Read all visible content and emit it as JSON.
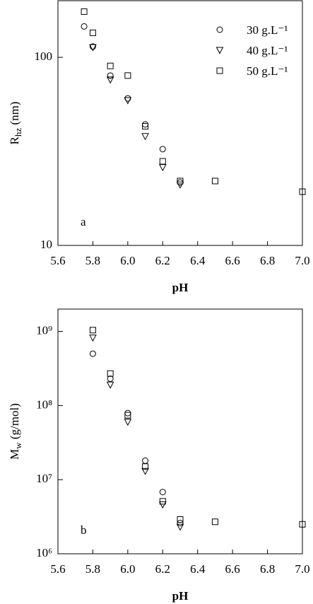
{
  "chart_data": [
    {
      "type": "scatter",
      "annotation": "a",
      "xlabel": "pH",
      "ylabel": {
        "main": "R",
        "sub": "hz",
        "rest": " (nm)"
      },
      "log_y": true,
      "legend": "upper right",
      "xlim": [
        5.6,
        7.0
      ],
      "xticks": [
        5.6,
        5.8,
        {
          "value": 6.0,
          "label": "6.0"
        },
        6.2,
        6.4,
        6.6,
        6.8,
        {
          "value": 7.0,
          "label": "7.0"
        }
      ],
      "ylim": [
        10,
        200
      ],
      "yticks": [
        10,
        100
      ],
      "series": [
        {
          "name": "30 g.L⁻¹",
          "marker": "circle",
          "color": "#000000",
          "x": [
            5.75,
            5.8,
            5.9,
            6.0,
            6.1,
            6.2,
            6.3
          ],
          "values": [
            146,
            114,
            80,
            60.5,
            44,
            32.5,
            21.6
          ]
        },
        {
          "name": "40 g.L⁻¹",
          "marker": "triangle",
          "color": "#000000",
          "x": [
            5.8,
            5.9,
            6.0,
            6.1,
            6.2,
            6.3
          ],
          "values": [
            113,
            76,
            59,
            38,
            26,
            21
          ]
        },
        {
          "name": "50 g.L⁻¹",
          "marker": "square",
          "color": "#000000",
          "x": [
            5.75,
            5.8,
            5.9,
            6.0,
            6.1,
            6.2,
            6.3,
            6.5,
            7.0
          ],
          "values": [
            175,
            135,
            90,
            80,
            43,
            28,
            22,
            22,
            19.3
          ]
        }
      ]
    },
    {
      "type": "scatter",
      "annotation": "b",
      "xlabel": "pH",
      "ylabel": {
        "main": "M",
        "sub": "w",
        "rest": " (g/mol)"
      },
      "log_y": true,
      "xlim": [
        5.6,
        7.0
      ],
      "xticks": [
        5.6,
        5.8,
        {
          "value": 6.0,
          "label": "6.0"
        },
        6.2,
        6.4,
        6.6,
        6.8,
        {
          "value": 7.0,
          "label": "7.0"
        }
      ],
      "ylim": [
        1000000,
        2000000000
      ],
      "yticks": [
        {
          "value": 1000000,
          "label": "10⁶"
        },
        {
          "value": 10000000,
          "label": "10⁷"
        },
        {
          "value": 100000000,
          "label": "10⁸"
        },
        {
          "value": 1000000000,
          "label": "10⁹"
        }
      ],
      "series": [
        {
          "name": "30 g.L⁻¹",
          "marker": "circle",
          "color": "#000000",
          "x": [
            5.8,
            5.9,
            6.0,
            6.1,
            6.2,
            6.3
          ],
          "values": [
            500000000,
            230000000,
            79000000,
            18000000,
            6800000,
            2600000
          ]
        },
        {
          "name": "40 g.L⁻¹",
          "marker": "triangle",
          "color": "#000000",
          "x": [
            5.8,
            5.9,
            6.0,
            6.1,
            6.2,
            6.3
          ],
          "values": [
            820000000,
            190000000,
            60000000,
            13000000,
            4600000,
            2300000
          ]
        },
        {
          "name": "50 g.L⁻¹",
          "marker": "square",
          "color": "#000000",
          "x": [
            5.8,
            5.9,
            6.0,
            6.1,
            6.2,
            6.3,
            6.5,
            7.0
          ],
          "values": [
            1040000000,
            270000000,
            74000000,
            15000000,
            5100000,
            2900000,
            2700000,
            2500000
          ]
        }
      ]
    }
  ]
}
